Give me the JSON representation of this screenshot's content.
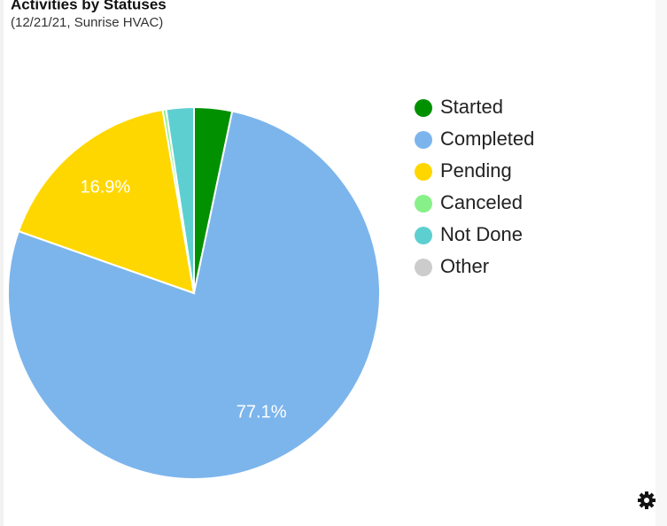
{
  "chart_data": {
    "type": "pie",
    "title": "Activities by Statuses",
    "subtitle": "(12/21/21, Sunrise HVAC)",
    "categories": [
      "Started",
      "Completed",
      "Pending",
      "Canceled",
      "Not Done",
      "Other"
    ],
    "values": [
      3.3,
      77.1,
      16.9,
      0.3,
      2.4,
      0
    ],
    "value_labels": [
      null,
      "77.1%",
      "16.9%",
      null,
      null,
      null
    ],
    "colors": [
      "#009000",
      "#7cb5ec",
      "#ffd700",
      "#88f088",
      "#5ecfd0",
      "#cccccc"
    ],
    "legend": "right"
  }
}
